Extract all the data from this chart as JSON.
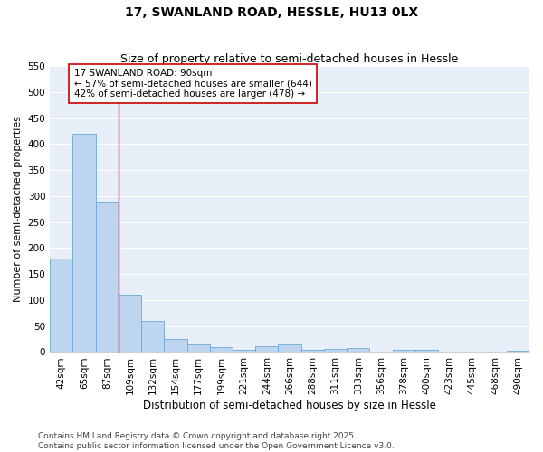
{
  "title": "17, SWANLAND ROAD, HESSLE, HU13 0LX",
  "subtitle": "Size of property relative to semi-detached houses in Hessle",
  "xlabel": "Distribution of semi-detached houses by size in Hessle",
  "ylabel": "Number of semi-detached properties",
  "categories": [
    "42sqm",
    "65sqm",
    "87sqm",
    "109sqm",
    "132sqm",
    "154sqm",
    "177sqm",
    "199sqm",
    "221sqm",
    "244sqm",
    "266sqm",
    "288sqm",
    "311sqm",
    "333sqm",
    "356sqm",
    "378sqm",
    "400sqm",
    "423sqm",
    "445sqm",
    "468sqm",
    "490sqm"
  ],
  "values": [
    180,
    420,
    288,
    110,
    60,
    25,
    14,
    10,
    5,
    12,
    14,
    5,
    6,
    8,
    0,
    5,
    4,
    0,
    0,
    0,
    3
  ],
  "bar_color": "#bdd5ee",
  "bar_edge_color": "#6aaad4",
  "vline_color": "#cc0000",
  "annotation_text": "17 SWANLAND ROAD: 90sqm\n← 57% of semi-detached houses are smaller (644)\n42% of semi-detached houses are larger (478) →",
  "annotation_box_facecolor": "#ffffff",
  "annotation_box_edgecolor": "#cc0000",
  "ylim": [
    0,
    550
  ],
  "yticks": [
    0,
    50,
    100,
    150,
    200,
    250,
    300,
    350,
    400,
    450,
    500,
    550
  ],
  "plot_bg_color": "#e8eff8",
  "fig_bg_color": "#ffffff",
  "footer_line1": "Contains HM Land Registry data © Crown copyright and database right 2025.",
  "footer_line2": "Contains public sector information licensed under the Open Government Licence v3.0.",
  "title_fontsize": 10,
  "subtitle_fontsize": 9,
  "xlabel_fontsize": 8.5,
  "ylabel_fontsize": 8,
  "tick_fontsize": 7.5,
  "annotation_fontsize": 7.5,
  "footer_fontsize": 6.5
}
